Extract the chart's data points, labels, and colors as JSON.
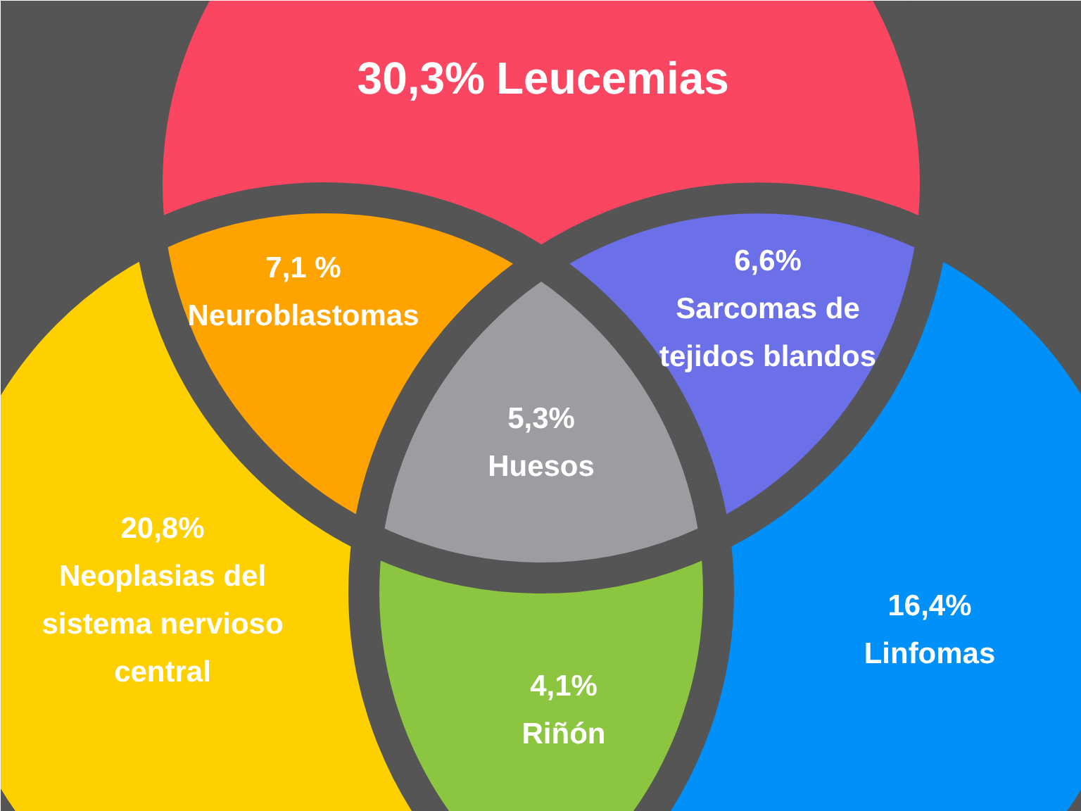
{
  "chart_data": {
    "type": "other",
    "categories": [
      "Leucemias",
      "Neuroblastomas",
      "Sarcomas de tejidos blandos",
      "Huesos",
      "Neoplasias del sistema nervioso central",
      "Riñón",
      "Linfomas"
    ],
    "values": [
      30.3,
      7.1,
      6.6,
      5.3,
      20.8,
      4.1,
      16.4
    ],
    "value_labels": [
      "30,3%",
      "7,1 %",
      "6,6%",
      "5,3%",
      "20,8%",
      "4,1%",
      "16,4%"
    ],
    "colors": [
      "#fb4661",
      "#ffa300",
      "#6b6fe8",
      "#9d9da1",
      "#ffd000",
      "#8cc540",
      "#0090fa"
    ]
  }
}
